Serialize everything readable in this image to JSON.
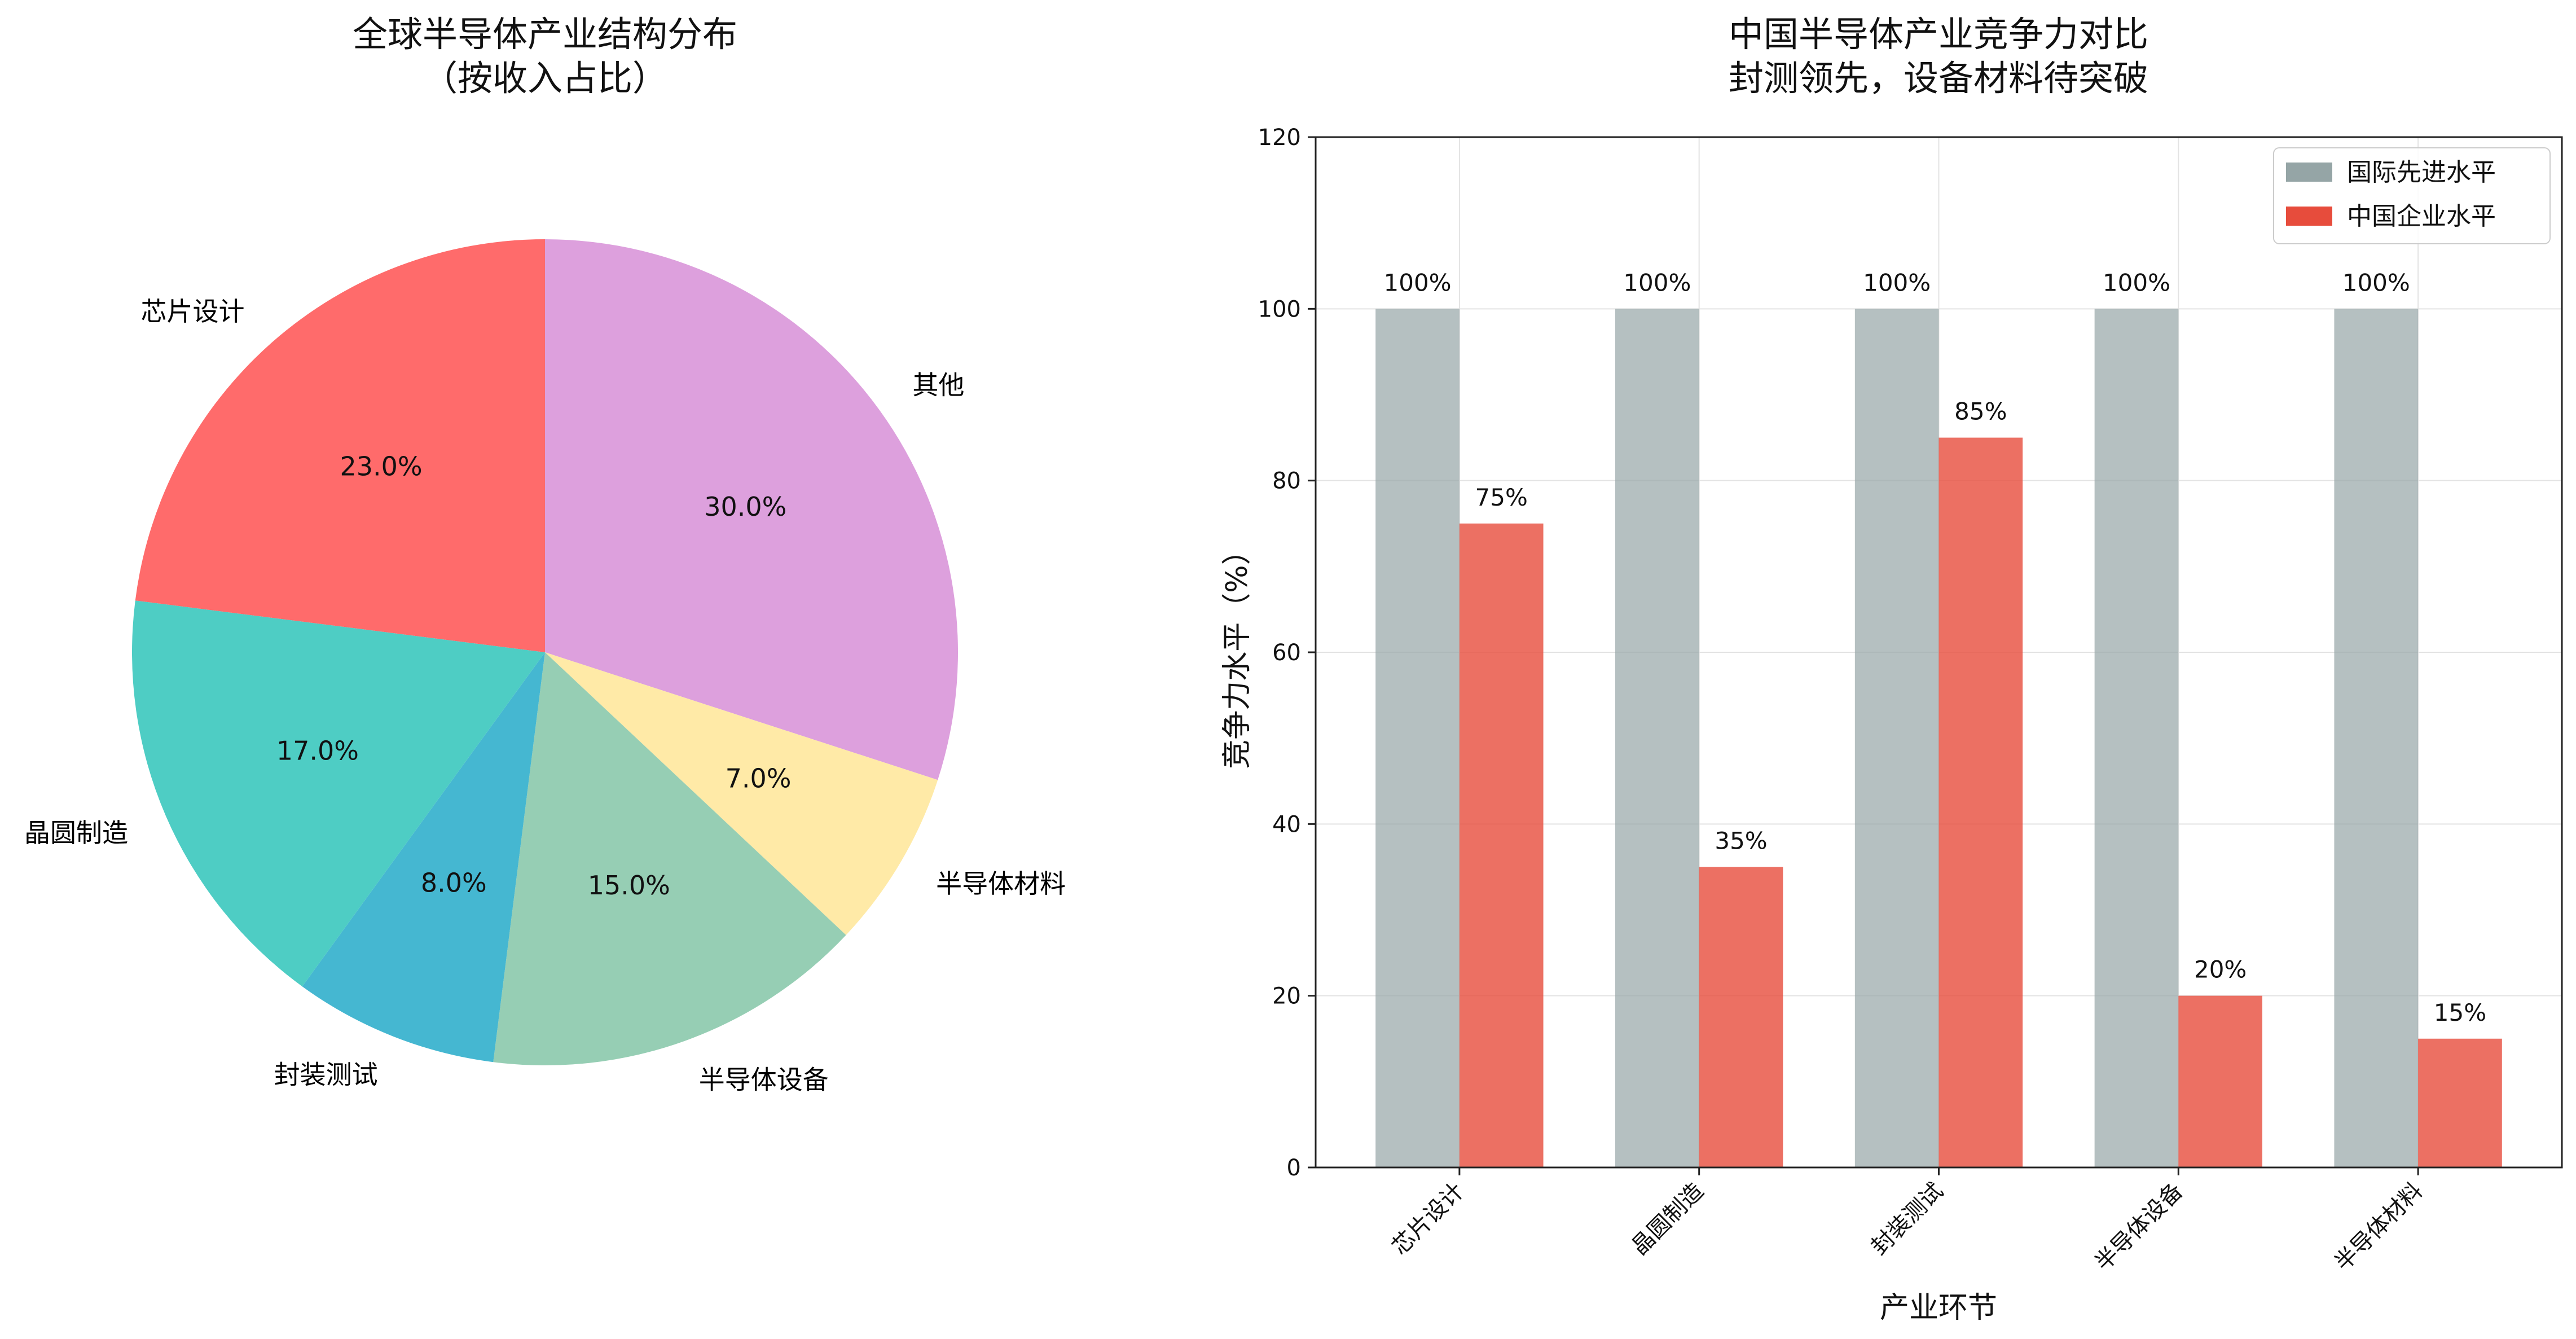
{
  "chart_data": [
    {
      "type": "pie",
      "title_lines": [
        "全球半导体产业结构分布",
        "（按收入占比）"
      ],
      "start_angle_deg": 90,
      "direction": "clockwise",
      "slices": [
        {
          "label": "其他",
          "value": 30.0,
          "pct_label": "30.0%",
          "color": "#DDA0DD"
        },
        {
          "label": "半导体材料",
          "value": 7.0,
          "pct_label": "7.0%",
          "color": "#FFEAA7"
        },
        {
          "label": "半导体设备",
          "value": 15.0,
          "pct_label": "15.0%",
          "color": "#96CEB4"
        },
        {
          "label": "封装测试",
          "value": 8.0,
          "pct_label": "8.0%",
          "color": "#45B7D1"
        },
        {
          "label": "晶圆制造",
          "value": 17.0,
          "pct_label": "17.0%",
          "color": "#4ECDC4"
        },
        {
          "label": "芯片设计",
          "value": 23.0,
          "pct_label": "23.0%",
          "color": "#FF6B6B"
        }
      ]
    },
    {
      "type": "bar",
      "title_lines": [
        "中国半导体产业竞争力对比",
        "封测领先，设备材料待突破"
      ],
      "xlabel": "产业环节",
      "ylabel": "竞争力水平（%）",
      "ylim": [
        0,
        120
      ],
      "yticks": [
        0,
        20,
        40,
        60,
        80,
        100,
        120
      ],
      "grid": true,
      "legend_position": "top-right",
      "categories": [
        "芯片设计",
        "晶圆制造",
        "封装测试",
        "半导体设备",
        "半导体材料"
      ],
      "series": [
        {
          "name": "国际先进水平",
          "color": "#95A5A6",
          "values": [
            100,
            100,
            100,
            100,
            100
          ],
          "value_labels": [
            "100%",
            "100%",
            "100%",
            "100%",
            "100%"
          ]
        },
        {
          "name": "中国企业水平",
          "color": "#E74C3C",
          "values": [
            75,
            35,
            85,
            20,
            15
          ],
          "value_labels": [
            "75%",
            "35%",
            "85%",
            "20%",
            "15%"
          ]
        }
      ]
    }
  ]
}
